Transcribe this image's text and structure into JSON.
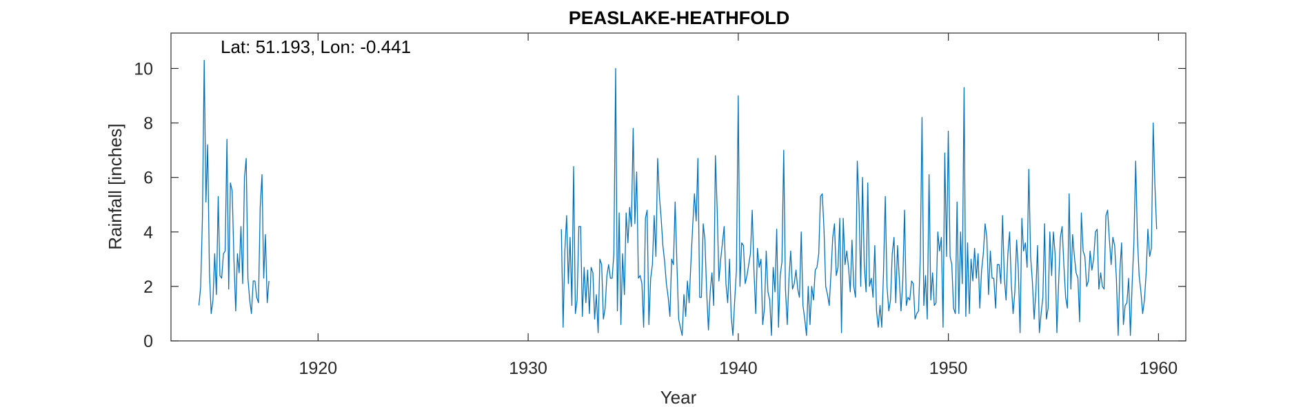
{
  "chart_data": {
    "type": "line",
    "title": "PEASLAKE-HEATHFOLD",
    "annotation": "Lat: 51.193, Lon: -0.441",
    "xlabel": "Year",
    "ylabel": "Rainfall [inches]",
    "xlim": [
      1913.0,
      1961.3
    ],
    "ylim": [
      0,
      11.3
    ],
    "xticks": [
      1920,
      1930,
      1940,
      1950,
      1960
    ],
    "yticks": [
      0,
      2,
      4,
      6,
      8,
      10
    ],
    "grid": false,
    "line_color": "#0072BD",
    "series": [
      {
        "segments": [
          {
            "start_year": 1914.33,
            "values": [
              1.3,
              2.0,
              4.5,
              10.3,
              5.1,
              7.2,
              2.5,
              1.0,
              1.5,
              3.2,
              1.7,
              5.3,
              2.4,
              2.3,
              3.2,
              3.3,
              7.4,
              1.9,
              5.8,
              5.5,
              3.0,
              1.1,
              3.2,
              2.5,
              4.2,
              2.1,
              6.0,
              6.7,
              2.3,
              1.5,
              1.0,
              2.2,
              2.2,
              1.6,
              1.4,
              4.9,
              6.1,
              2.3,
              3.9,
              1.4,
              2.2
            ]
          },
          {
            "start_year": 1931.58,
            "values": [
              4.1,
              0.5,
              3.3,
              4.6,
              2.1,
              3.8,
              1.3,
              6.4,
              1.0,
              1.5,
              4.2,
              4.2,
              0.9,
              2.7,
              1.4,
              2.6,
              1.0,
              2.7,
              2.5,
              0.8,
              1.7,
              0.3,
              3.0,
              2.8,
              0.8,
              1.2,
              2.4,
              2.8,
              2.3,
              2.3,
              3.2,
              10.0,
              1.1,
              4.7,
              0.6,
              3.2,
              1.7,
              4.7,
              3.6,
              4.9,
              4.2,
              7.8,
              4.3,
              6.2,
              2.3,
              2.4,
              2.1,
              0.5,
              4.5,
              4.8,
              0.6,
              2.3,
              2.8,
              4.6,
              3.1,
              6.7,
              5.3,
              4.5,
              3.5,
              2.9,
              2.1,
              1.6,
              0.9,
              3.0,
              2.8,
              5.1,
              2.8,
              0.8,
              0.5,
              0.2,
              1.7,
              0.9,
              2.2,
              1.4,
              2.9,
              4.2,
              5.4,
              4.4,
              6.7,
              1.6,
              1.6,
              4.3,
              3.7,
              1.8,
              0.4,
              1.8,
              2.5,
              1.3,
              6.8,
              4.8,
              2.2,
              3.0,
              3.6,
              4.2,
              2.1,
              1.4,
              3.0,
              0.9,
              0.2,
              1.5,
              2.6,
              9.0,
              2.0,
              3.6,
              3.5,
              2.1,
              2.4,
              2.8,
              3.2,
              4.8,
              2.6,
              1.0,
              3.4,
              2.7,
              3.0,
              0.6,
              1.2,
              3.3,
              1.8,
              1.5,
              0.2,
              2.7,
              1.8,
              4.1,
              0.5,
              2.4,
              2.9,
              7.0,
              1.9,
              0.6,
              2.3,
              3.3,
              1.9,
              2.1,
              2.6,
              1.9,
              1.6,
              4.0,
              1.3,
              0.8,
              0.2,
              2.0,
              0.6,
              2.0,
              1.5,
              2.6,
              2.7,
              3.2,
              5.3,
              5.4,
              4.1,
              2.0,
              1.7,
              1.3,
              2.5,
              3.8,
              4.3,
              2.4,
              2.7,
              4.5,
              0.3,
              4.5,
              2.8,
              3.3,
              2.7,
              1.8,
              3.7,
              2.0,
              1.6,
              6.6,
              5.0,
              2.0,
              6.0,
              2.8,
              1.8,
              5.8,
              2.0,
              2.3,
              1.6,
              3.5,
              1.1,
              0.5,
              1.3,
              0.5,
              2.5,
              5.3,
              2.0,
              1.1,
              1.5,
              3.2,
              3.8,
              1.4,
              3.5,
              2.3,
              1.1,
              2.2,
              4.8,
              1.3,
              1.6,
              1.5,
              2.2,
              2.1,
              0.8,
              1.0,
              1.1,
              3.1,
              8.2,
              1.3,
              2.4,
              0.8,
              6.1,
              1.5,
              2.5,
              1.3,
              1.4,
              4.0,
              3.3,
              3.8,
              0.5,
              6.9,
              3.1,
              7.7,
              3.1,
              2.8,
              1.2,
              1.0,
              5.1,
              1.0,
              4.0,
              2.1,
              9.3,
              0.9,
              3.6,
              1.0,
              3.0,
              2.2,
              3.4,
              2.3,
              3.2,
              1.2,
              2.6,
              3.2,
              4.3,
              3.8,
              1.7,
              3.3,
              2.3,
              2.3,
              1.2,
              2.8,
              2.8,
              2.1,
              4.6,
              2.3,
              1.5,
              3.2,
              4.0,
              2.1,
              1.0,
              1.8,
              3.7,
              2.6,
              0.3,
              4.5,
              3.3,
              3.6,
              2.7,
              6.3,
              3.1,
              2.2,
              0.8,
              1.8,
              3.5,
              0.3,
              1.0,
              1.6,
              4.3,
              0.8,
              1.2,
              4.0,
              2.4,
              4.0,
              3.2,
              0.3,
              2.1,
              3.8,
              4.2,
              2.8,
              1.6,
              1.2,
              5.4,
              1.9,
              3.9,
              3.1,
              2.5,
              2.3,
              0.7,
              4.7,
              3.3,
              3.1,
              2.0,
              2.2,
              3.3,
              2.6,
              3.0,
              4.0,
              4.1,
              1.9,
              2.5,
              2.0,
              1.9,
              4.6,
              4.8,
              3.7,
              2.8,
              3.8,
              3.5,
              2.3,
              0.2,
              2.6,
              3.6,
              0.6,
              1.3,
              1.4,
              2.3,
              0.2,
              2.1,
              3.6,
              6.6,
              3.8,
              2.4,
              1.8,
              1.0,
              1.5,
              2.5,
              4.1,
              3.1,
              3.4,
              8.0,
              5.7,
              4.1
            ]
          }
        ]
      }
    ]
  }
}
